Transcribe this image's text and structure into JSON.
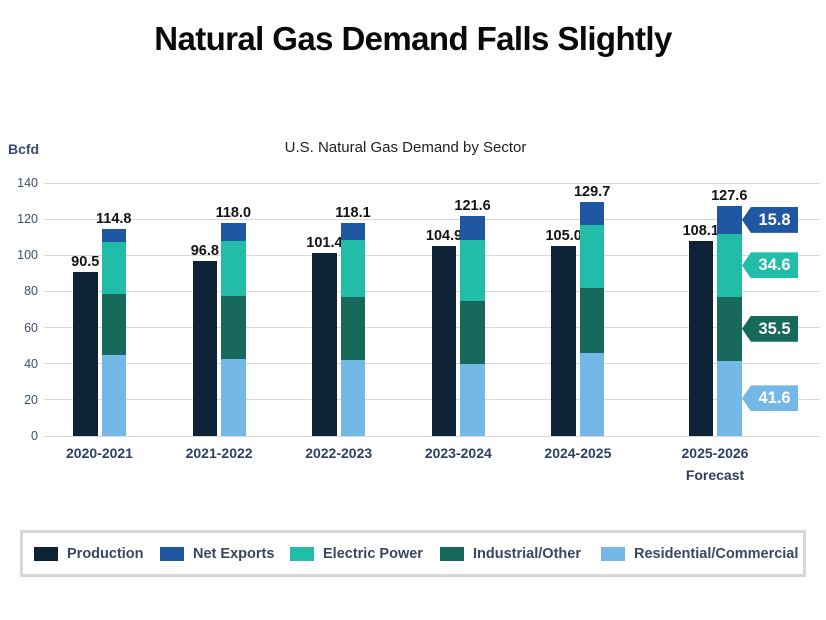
{
  "title": "Natural Gas Demand Falls Slightly",
  "chart": {
    "subtitle": "U.S. Natural Gas Demand by Sector",
    "y_axis_label": "Bcfd"
  },
  "colors": {
    "production": "#0d2137",
    "net_exports": "#1f57a3",
    "electric_power": "#22bda9",
    "industrial_other": "#16695b",
    "residential_commercial": "#74b8e8",
    "gridline": "#d9d9d9",
    "axis_text": "#2e3f63",
    "callout_text": "#ffffff"
  },
  "chart_data": {
    "type": "bar",
    "subtype": "grouped-production-vs-stacked-demand",
    "title": "U.S. Natural Gas Demand by Sector",
    "ylabel": "Bcfd",
    "ylim": [
      0,
      140
    ],
    "yticks": [
      0,
      20,
      40,
      60,
      80,
      100,
      120,
      140
    ],
    "grid": "horizontal",
    "categories": [
      "2020-2021",
      "2021-2022",
      "2022-2023",
      "2023-2024",
      "2024-2025",
      "2025-2026"
    ],
    "category_sublabels": [
      "",
      "",
      "",
      "",
      "",
      "Forecast"
    ],
    "production": {
      "name": "Production",
      "color": "#0d2137",
      "values": [
        90.5,
        96.8,
        101.4,
        104.9,
        105.0,
        108.1
      ],
      "labels": [
        "90.5",
        "96.8",
        "101.4",
        "104.9",
        "105.0",
        "108.1"
      ]
    },
    "stack_series": [
      {
        "name": "Residential/Commercial",
        "color": "#74b8e8",
        "values": [
          44.7,
          42.6,
          41.9,
          40.0,
          46.1,
          41.6
        ]
      },
      {
        "name": "Industrial/Other",
        "color": "#16695b",
        "values": [
          33.7,
          35.0,
          34.8,
          34.7,
          36.0,
          35.5
        ]
      },
      {
        "name": "Electric Power",
        "color": "#22bda9",
        "values": [
          28.8,
          30.4,
          31.6,
          34.0,
          34.8,
          34.6
        ]
      },
      {
        "name": "Net Exports",
        "color": "#1f57a3",
        "values": [
          7.6,
          10.0,
          9.8,
          12.9,
          12.8,
          15.8
        ]
      }
    ],
    "demand_total_labels": [
      "114.8",
      "118.0",
      "118.1",
      "121.6",
      "129.7",
      "127.6"
    ],
    "forecast_callouts": [
      {
        "series": "Net Exports",
        "label": "15.8",
        "color": "#1f57a3"
      },
      {
        "series": "Electric Power",
        "label": "34.6",
        "color": "#22bda9"
      },
      {
        "series": "Industrial/Other",
        "label": "35.5",
        "color": "#16695b"
      },
      {
        "series": "Residential/Commercial",
        "label": "41.6",
        "color": "#74b8e8"
      }
    ]
  },
  "legend": {
    "items": [
      {
        "label": "Production",
        "color": "#0d2137"
      },
      {
        "label": "Net Exports",
        "color": "#1f57a3"
      },
      {
        "label": "Electric Power",
        "color": "#22bda9"
      },
      {
        "label": "Industrial/Other",
        "color": "#16695b"
      },
      {
        "label": "Residential/Commercial",
        "color": "#74b8e8"
      }
    ]
  }
}
